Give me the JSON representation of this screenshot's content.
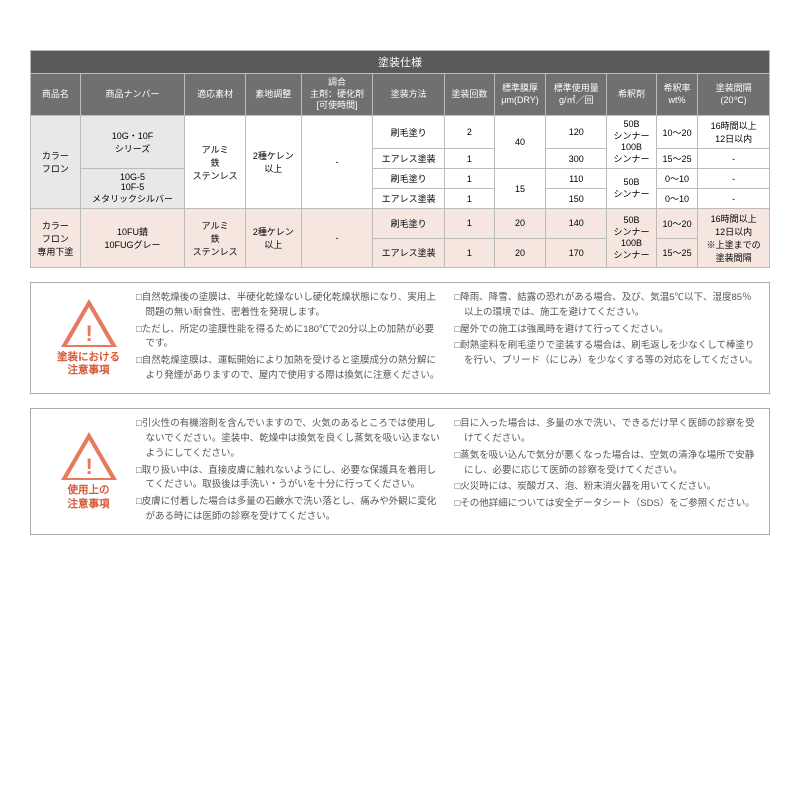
{
  "table": {
    "title": "塗装仕様",
    "headers": [
      "商品名",
      "商品ナンバー",
      "適応素材",
      "素地調整",
      "調合\n主剤：硬化剤\n[可使時間]",
      "塗装方法",
      "塗装回数",
      "標準膜厚\nμm(DRY)",
      "標準使用量\ng/㎡／回",
      "希釈剤",
      "希釈率\nwt%",
      "塗装間隔\n(20℃)"
    ],
    "cat1": "カラー\nフロン",
    "pn1": "10G・10F\nシリーズ",
    "pn2": "10G-5\n10F-5\nメタリックシルバー",
    "cat2": "カラー\nフロン\n専用下塗",
    "pn3": "10FU錆\n10FUGグレー",
    "mat1": "アルミ\n鉄\nステンレス",
    "mat2": "アルミ\n鉄\nステンレス",
    "prep": "2種ケレン\n以上",
    "mix": "-",
    "method_brush": "刷毛塗り",
    "method_air": "エアレス塗装",
    "r1": {
      "count": "2",
      "use": "120",
      "dil": "50B\nシンナー\n100B\nシンナー",
      "rate": "10～20",
      "intv": "16時間以上\n12日以内"
    },
    "r2": {
      "count": "1",
      "use": "300",
      "rate": "15～25",
      "intv": "-"
    },
    "r3": {
      "count": "1",
      "use": "110",
      "dil": "50B\nシンナー",
      "rate": "0～10",
      "intv": "-"
    },
    "r4": {
      "count": "1",
      "use": "150",
      "rate": "0～10",
      "intv": "-"
    },
    "r5": {
      "count": "1",
      "thick": "20",
      "use": "140",
      "dil": "50B\nシンナー\n100B\nシンナー",
      "rate": "10～20",
      "intv": "16時間以上\n12日以内\n※上塗までの\n塗装間隔"
    },
    "r6": {
      "count": "1",
      "thick": "20",
      "use": "170",
      "rate": "15～25"
    },
    "thick1": "40",
    "thick2": "15"
  },
  "notice1": {
    "label": "塗装における\n注意事項",
    "left": [
      "□自然乾燥後の塗膜は、半硬化乾燥ないし硬化乾燥状態になり、実用上問題の無い耐食性、密着性を発現します。",
      "□ただし、所定の塗膜性能を得るために180℃で20分以上の加熱が必要です。",
      "□自然乾燥塗膜は、運転開始により加熱を受けると塗膜成分の熱分解により発煙がありますので、屋内で使用する際は換気に注意ください。"
    ],
    "right": [
      "□降雨、降雪、結露の恐れがある場合、及び、気温5℃以下、湿度85％以上の環境では、施工を避けてください。",
      "□屋外での施工は強風時を避けて行ってください。",
      "□耐熱塗料を刷毛塗りで塗装する場合は、刷毛返しを少なくして棒塗りを行い、ブリード（にじみ）を少なくする等の対応をしてください。"
    ]
  },
  "notice2": {
    "label": "使用上の\n注意事項",
    "left": [
      "□引火性の有機溶剤を含んでいますので、火気のあるところでは使用しないでください。塗装中、乾燥中は換気を良くし蒸気を吸い込まないようにしてください。",
      "□取り扱い中は、直接皮膚に触れないようにし、必要な保護具を着用してください。取扱後は手洗い・うがいを十分に行ってください。",
      "□皮膚に付着した場合は多量の石鹸水で洗い落とし、痛みや外観に変化がある時には医師の診察を受けてください。"
    ],
    "right": [
      "□目に入った場合は、多量の水で洗い、できるだけ早く医師の診察を受けてください。",
      "□蒸気を吸い込んで気分が悪くなった場合は、空気の清浄な場所で安静にし、必要に応じて医師の診察を受けてください。",
      "□火災時には、炭酸ガス、泡、粉末消火器を用いてください。",
      "□その他詳細については安全データシート（SDS）をご参照ください。"
    ]
  }
}
